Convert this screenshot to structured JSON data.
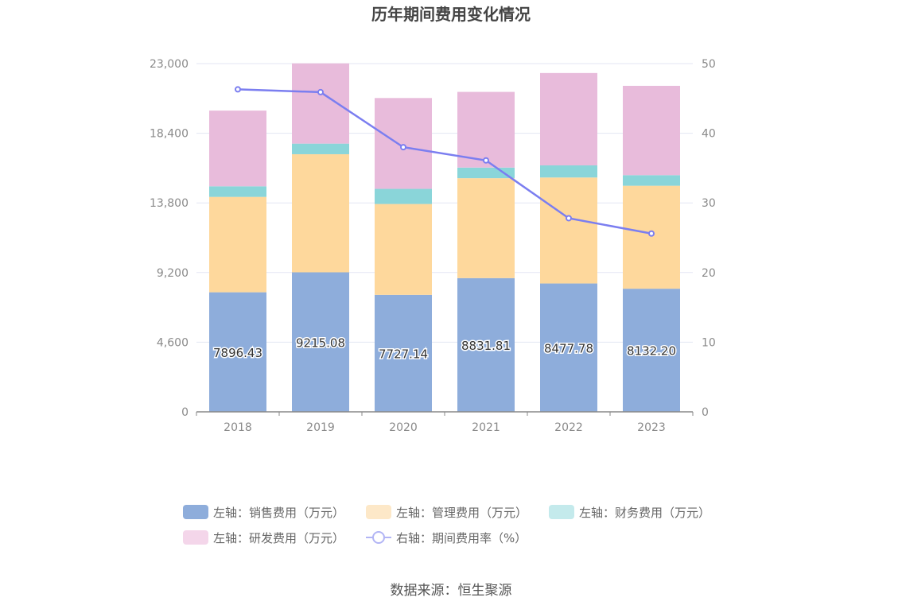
{
  "source_label": "数据来源：恒生聚源",
  "chart_data": {
    "type": "bar",
    "stacked": true,
    "title": "历年期间费用变化情况",
    "categories": [
      "2018",
      "2019",
      "2020",
      "2021",
      "2022",
      "2023"
    ],
    "left_axis": {
      "min": 0,
      "max": 23000,
      "ticks": [
        0,
        4600,
        9200,
        13800,
        18400,
        23000
      ],
      "tick_labels": [
        "0",
        "4,600",
        "9,200",
        "13,800",
        "18,400",
        "23,000"
      ]
    },
    "right_axis": {
      "min": 0,
      "max": 50,
      "ticks": [
        0,
        10,
        20,
        30,
        40,
        50
      ],
      "tick_labels": [
        "0",
        "10",
        "20",
        "30",
        "40",
        "50"
      ]
    },
    "series": [
      {
        "name": "左轴：销售费用（万元）",
        "axis": "left",
        "kind": "bar",
        "color": "#8eaddb",
        "values": [
          7896.43,
          9215.08,
          7727.14,
          8831.81,
          8477.78,
          8132.2
        ],
        "labels": [
          "7896.43",
          "9215.08",
          "7727.14",
          "8831.81",
          "8477.78",
          "8132.20"
        ]
      },
      {
        "name": "左轴：管理费用（万元）",
        "axis": "left",
        "kind": "bar",
        "color": "#fed89c",
        "values": [
          6300,
          7800,
          6000,
          6600,
          7000,
          6800
        ]
      },
      {
        "name": "左轴：财务费用（万元）",
        "axis": "left",
        "kind": "bar",
        "color": "#8ad5d9",
        "values": [
          700,
          700,
          1000,
          700,
          800,
          700
        ]
      },
      {
        "name": "左轴：研发费用（万元）",
        "axis": "left",
        "kind": "bar",
        "color": "#e8bbdb",
        "values": [
          5000,
          5300,
          6000,
          5000,
          6100,
          5900
        ]
      },
      {
        "name": "右轴：期间费用率（%）",
        "axis": "right",
        "kind": "line",
        "color": "#7b7ef0",
        "values": [
          46.3,
          45.9,
          38.0,
          36.1,
          27.8,
          25.6
        ]
      }
    ],
    "legend_position": "bottom"
  }
}
